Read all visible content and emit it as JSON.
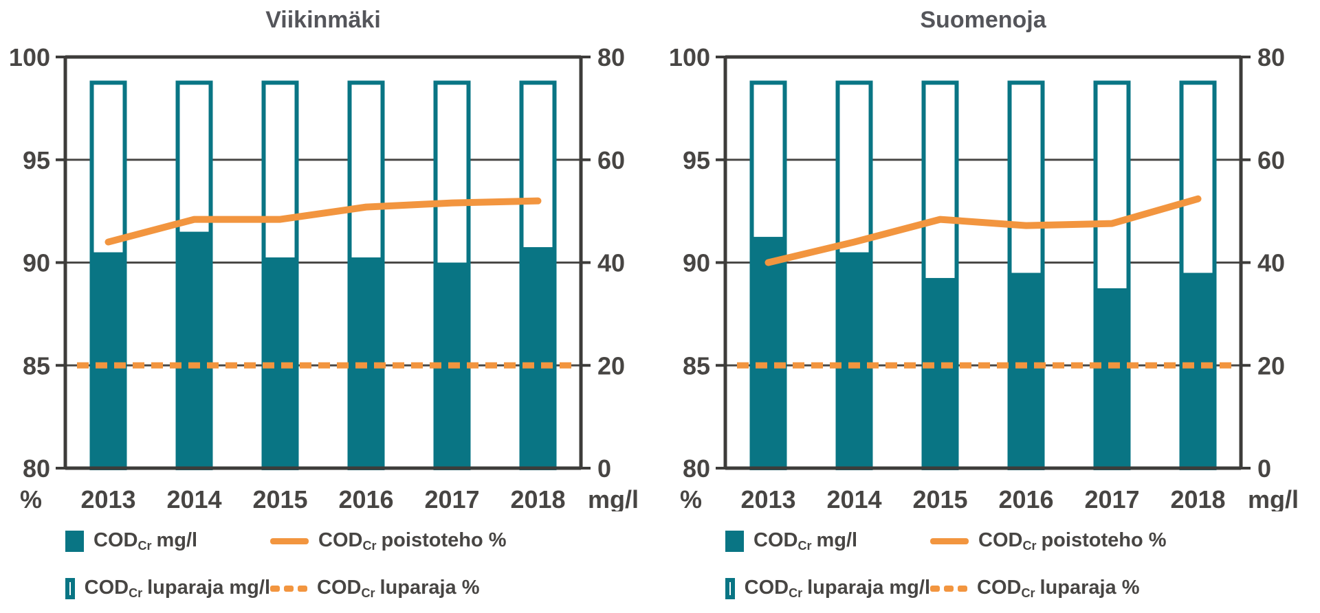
{
  "colors": {
    "teal": "#097584",
    "orange": "#f2953f",
    "axis": "#3d3c3a",
    "grid": "#4a4947",
    "tick_text": "#474543",
    "title_text": "#54555a",
    "background": "#ffffff"
  },
  "legend": {
    "items": [
      {
        "swatch": "bar-filled",
        "pre": "COD",
        "sub": "Cr",
        "post": "mg/l"
      },
      {
        "swatch": "line-solid",
        "pre": "COD",
        "sub": "Cr",
        "post": "poistoteho %"
      },
      {
        "swatch": "bar-outline",
        "pre": "COD",
        "sub": "Cr",
        "post": "luparaja mg/l"
      },
      {
        "swatch": "line-dashed",
        "pre": "COD",
        "sub": "Cr",
        "post": "luparaja %"
      }
    ]
  },
  "chart_data": [
    {
      "type": "bar",
      "title": "Viikinmäki",
      "categories": [
        "2013",
        "2014",
        "2015",
        "2016",
        "2017",
        "2018"
      ],
      "left_axis": {
        "label": "%",
        "range": [
          80,
          100
        ],
        "ticks": [
          "100",
          "95",
          "90",
          "85",
          "80"
        ]
      },
      "right_axis": {
        "label": "mg/l",
        "range": [
          0,
          80
        ],
        "ticks": [
          "80",
          "60",
          "40",
          "20",
          "0"
        ]
      },
      "grid": true,
      "legend_position": "bottom",
      "series": [
        {
          "name": "COD_Cr mg/l",
          "type": "bar",
          "axis": "right",
          "values": [
            42,
            46,
            41,
            41,
            40,
            43
          ]
        },
        {
          "name": "COD_Cr luparaja mg/l",
          "type": "bar-outline",
          "axis": "right",
          "values": [
            75,
            75,
            75,
            75,
            75,
            75
          ]
        },
        {
          "name": "COD_Cr poistoteho %",
          "type": "line",
          "axis": "left",
          "values": [
            91.0,
            92.1,
            92.1,
            92.7,
            92.9,
            93.0
          ]
        },
        {
          "name": "COD_Cr luparaja %",
          "type": "line-dashed",
          "axis": "left",
          "values": [
            85,
            85,
            85,
            85,
            85,
            85
          ]
        }
      ]
    },
    {
      "type": "bar",
      "title": "Suomenoja",
      "categories": [
        "2013",
        "2014",
        "2015",
        "2016",
        "2017",
        "2018"
      ],
      "left_axis": {
        "label": "%",
        "range": [
          80,
          100
        ],
        "ticks": [
          "100",
          "95",
          "90",
          "85",
          "80"
        ]
      },
      "right_axis": {
        "label": "mg/l",
        "range": [
          0,
          80
        ],
        "ticks": [
          "80",
          "60",
          "40",
          "20",
          "0"
        ]
      },
      "grid": true,
      "legend_position": "bottom",
      "series": [
        {
          "name": "COD_Cr mg/l",
          "type": "bar",
          "axis": "right",
          "values": [
            45,
            42,
            37,
            38,
            35,
            38
          ]
        },
        {
          "name": "COD_Cr luparaja mg/l",
          "type": "bar-outline",
          "axis": "right",
          "values": [
            75,
            75,
            75,
            75,
            75,
            75
          ]
        },
        {
          "name": "COD_Cr poistoteho %",
          "type": "line",
          "axis": "left",
          "values": [
            90.0,
            91.0,
            92.1,
            91.8,
            91.9,
            93.1
          ]
        },
        {
          "name": "COD_Cr luparaja %",
          "type": "line-dashed",
          "axis": "left",
          "values": [
            85,
            85,
            85,
            85,
            85,
            85
          ]
        }
      ]
    }
  ]
}
